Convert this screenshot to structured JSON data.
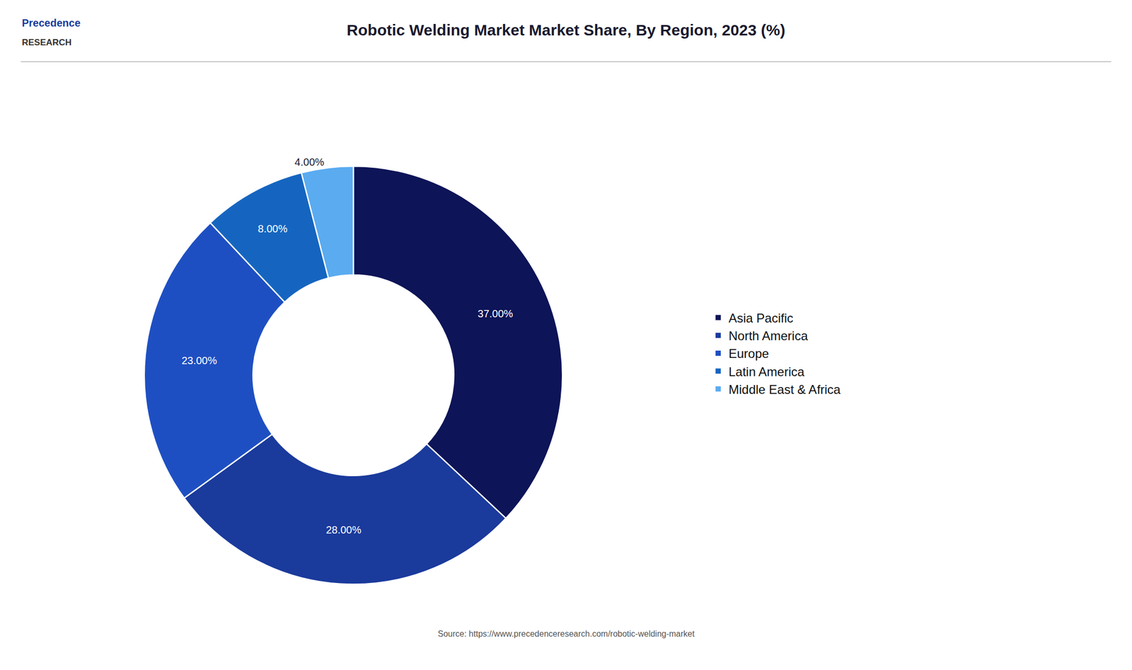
{
  "chart_data": {
    "type": "donut",
    "title": "Robotic Welding Market Market Share, By Region, 2023 (%)",
    "categories": [
      "Asia Pacific",
      "North America",
      "Europe",
      "Latin America",
      "Middle East & Africa"
    ],
    "values": [
      37,
      28,
      23,
      8,
      4
    ],
    "value_labels": [
      "37.00%",
      "28.00%",
      "23.00%",
      "8.00%",
      "4.00%"
    ],
    "colors": [
      "#0d1457",
      "#1a3a9c",
      "#1e4fc2",
      "#1565c0",
      "#5aabf0"
    ],
    "data_labels": true,
    "legend": "right",
    "annotations": [
      "Source: https://www.precedenceresearch.com/robotic-welding-market",
      "Precedence",
      "RESEARCH"
    ]
  }
}
